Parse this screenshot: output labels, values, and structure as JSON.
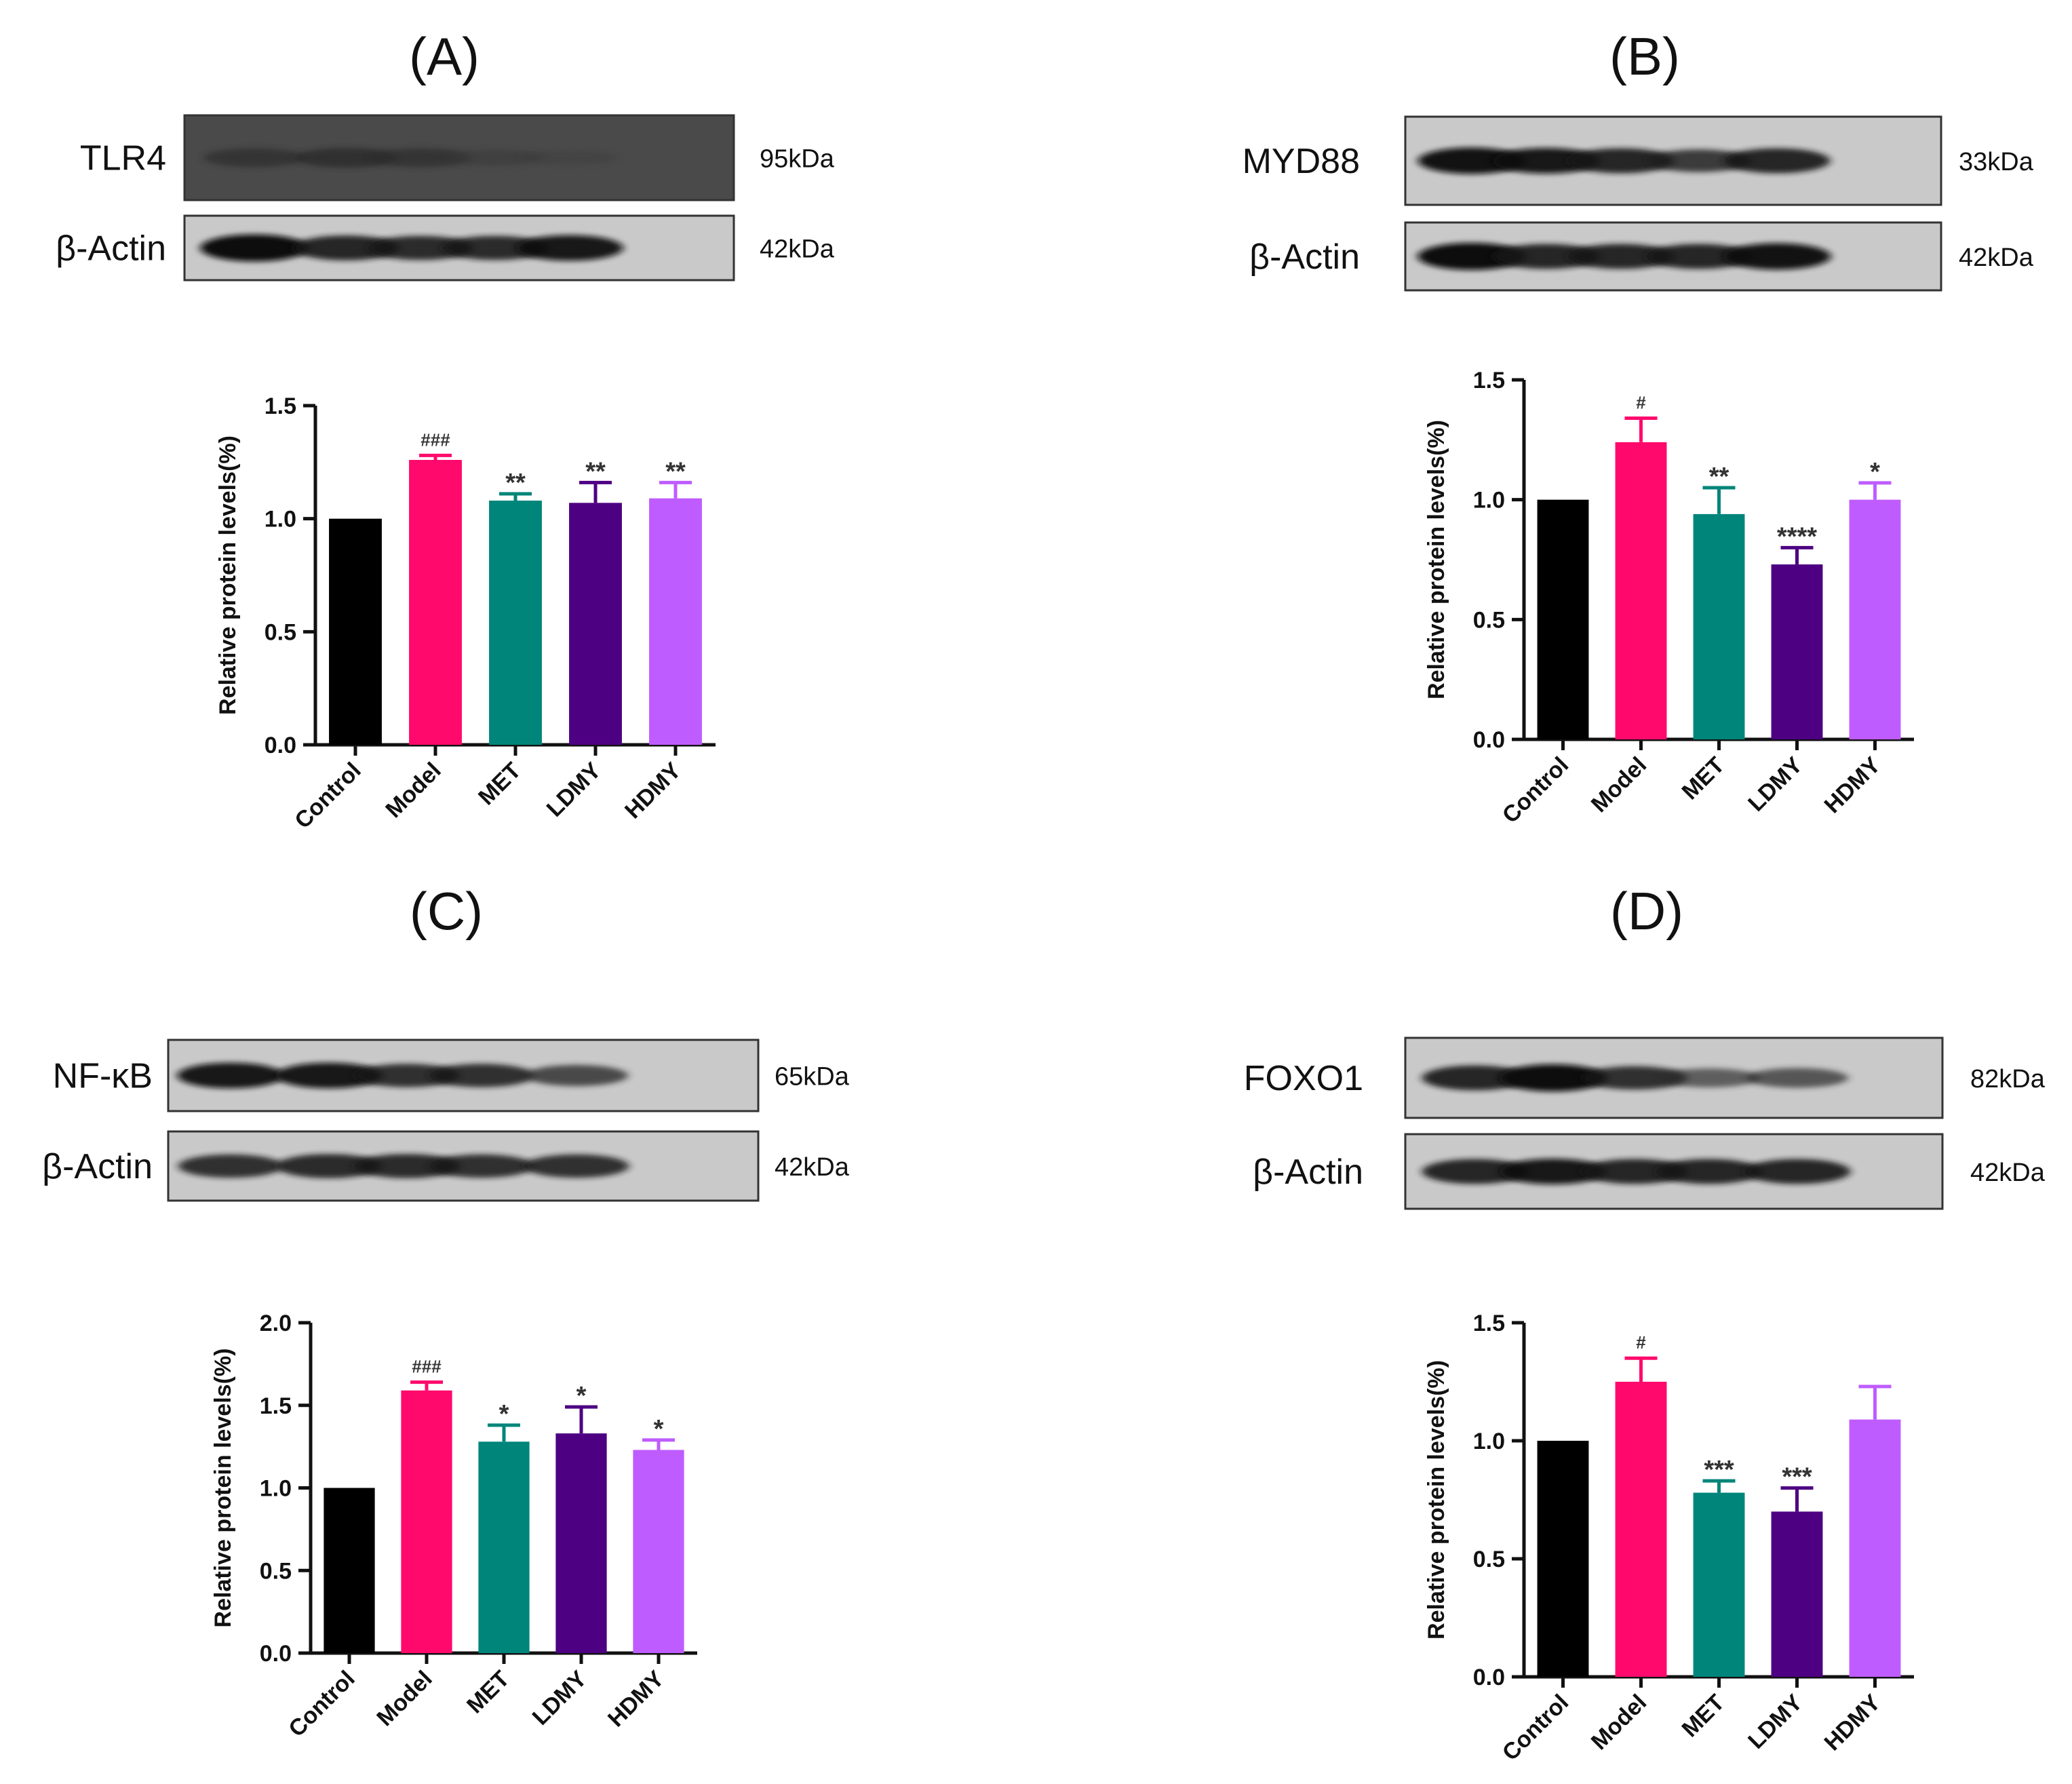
{
  "colors": {
    "Control": "#000000",
    "Model": "#ff0a6c",
    "MET": "#00857a",
    "LDMY": "#4d0082",
    "HDMY": "#bf5cff"
  },
  "chart_data": [
    {
      "type": "bar",
      "panel_label": "(A)",
      "blot": {
        "rows": [
          {
            "protein": "TLR4",
            "mw": "95kDa",
            "bands": [
              0.45,
              0.5,
              0.45,
              0.25,
              0.15
            ]
          },
          {
            "protein": "β-Actin",
            "mw": "42kDa",
            "bands": [
              1.0,
              0.85,
              0.8,
              0.8,
              0.9
            ]
          }
        ]
      },
      "categories": [
        "Control",
        "Model",
        "MET",
        "LDMY",
        "HDMY"
      ],
      "values": [
        1.0,
        1.26,
        1.08,
        1.07,
        1.09
      ],
      "errors": [
        0,
        0.02,
        0.03,
        0.09,
        0.07
      ],
      "significance": [
        "",
        "###",
        "**",
        "**",
        "**"
      ],
      "ylabel": "Relative protein levels(%)",
      "ylim": [
        0,
        1.5
      ],
      "yticks": [
        "0.0",
        "0.5",
        "1.0",
        "1.5"
      ]
    },
    {
      "type": "bar",
      "panel_label": "(B)",
      "blot": {
        "rows": [
          {
            "protein": "MYD88",
            "mw": "33kDa",
            "bands": [
              0.95,
              0.9,
              0.85,
              0.7,
              0.85
            ]
          },
          {
            "protein": "β-Actin",
            "mw": "42kDa",
            "bands": [
              1.0,
              0.85,
              0.85,
              0.85,
              0.95
            ]
          }
        ]
      },
      "categories": [
        "Control",
        "Model",
        "MET",
        "LDMY",
        "HDMY"
      ],
      "values": [
        1.0,
        1.24,
        0.94,
        0.73,
        1.0
      ],
      "errors": [
        0,
        0.1,
        0.11,
        0.07,
        0.07
      ],
      "significance": [
        "",
        "#",
        "**",
        "****",
        "*"
      ],
      "ylabel": "Relative protein levels(%)",
      "ylim": [
        0,
        1.5
      ],
      "yticks": [
        "0.0",
        "0.5",
        "1.0",
        "1.5"
      ]
    },
    {
      "type": "bar",
      "panel_label": "(C)",
      "blot": {
        "rows": [
          {
            "protein": "NF-κB",
            "mw": "65kDa",
            "bands": [
              0.9,
              0.9,
              0.75,
              0.75,
              0.6
            ]
          },
          {
            "protein": "β-Actin",
            "mw": "42kDa",
            "bands": [
              0.75,
              0.8,
              0.8,
              0.75,
              0.75
            ]
          }
        ]
      },
      "categories": [
        "Control",
        "Model",
        "MET",
        "LDMY",
        "HDMY"
      ],
      "values": [
        1.0,
        1.59,
        1.28,
        1.33,
        1.23
      ],
      "errors": [
        0,
        0.05,
        0.1,
        0.16,
        0.06
      ],
      "significance": [
        "",
        "###",
        "*",
        "*",
        "*"
      ],
      "ylabel": "Relative protein levels(%)",
      "ylim": [
        0,
        2.0
      ],
      "yticks": [
        "0.0",
        "0.5",
        "1.0",
        "1.5",
        "2.0"
      ]
    },
    {
      "type": "bar",
      "panel_label": "(D)",
      "blot": {
        "rows": [
          {
            "protein": "FOXO1",
            "mw": "82kDa",
            "bands": [
              0.85,
              1.0,
              0.75,
              0.45,
              0.5
            ]
          },
          {
            "protein": "β-Actin",
            "mw": "42kDa",
            "bands": [
              0.85,
              0.9,
              0.85,
              0.85,
              0.85
            ]
          }
        ]
      },
      "categories": [
        "Control",
        "Model",
        "MET",
        "LDMY",
        "HDMY"
      ],
      "values": [
        1.0,
        1.25,
        0.78,
        0.7,
        1.09
      ],
      "errors": [
        0,
        0.1,
        0.05,
        0.1,
        0.14
      ],
      "significance": [
        "",
        "#",
        "***",
        "***",
        ""
      ],
      "ylabel": "Relative protein levels(%)",
      "ylim": [
        0,
        1.5
      ],
      "yticks": [
        "0.0",
        "0.5",
        "1.0",
        "1.5"
      ]
    }
  ]
}
